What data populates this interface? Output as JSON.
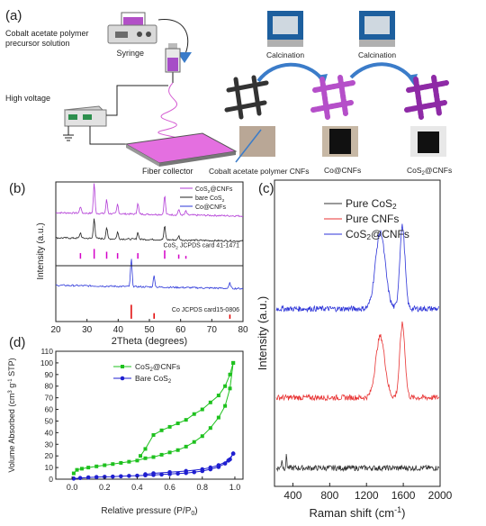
{
  "panel_a": {
    "label": "(a)",
    "precursor_line1": "Cobalt acetate polymer",
    "precursor_line2": "precursor solution",
    "syringe": "Syringe",
    "high_voltage": "High voltage",
    "fiber_collector": "Fiber collector",
    "calcination_1": "Calcination",
    "calcination_2": "Calcination",
    "stage_polymer": "Cobalt acetate polymer CNFs",
    "stage_co": "Co@CNFs",
    "stage_cos2_main": "CoS",
    "stage_cos2_sub": "2",
    "stage_cos2_rest": "@CNFs"
  },
  "colors": {
    "cos2_cnfs": "#b23bd6",
    "bare_cos2": "#222222",
    "co_cnfs": "#2b36d9",
    "ref_cos2": "#d400c8",
    "ref_co": "#e00000",
    "raman_pure_cos2": "#333333",
    "raman_pure_cnfs": "#e83232",
    "raman_cos2_cnfs": "#2c33d8",
    "bet_cos2_cnfs": "#1ec11e",
    "bet_bare": "#1f1fd0",
    "magenta_fiber": "#d45bd2",
    "device_blue": "#1d5f9e",
    "arrow_blue": "#3b7cc9"
  },
  "chart_data": [
    {
      "panel": "(b)",
      "type": "line",
      "xlabel": "2Theta (degrees)",
      "ylabel": "Intensity (a.u.)",
      "xlim": [
        20,
        80
      ],
      "xticks": [
        20,
        30,
        40,
        50,
        60,
        70,
        80
      ],
      "legend": "top-right",
      "series": [
        {
          "name": "CoS2@CNFs",
          "legend_main": "CoS",
          "legend_sub": "2",
          "legend_rest": "@CNFs",
          "baseline": 0.78,
          "peaks": [
            [
              27.9,
              0.05
            ],
            [
              32.3,
              0.22
            ],
            [
              36.3,
              0.1
            ],
            [
              39.8,
              0.07
            ],
            [
              46.3,
              0.08
            ],
            [
              54.9,
              0.14
            ],
            [
              59.4,
              0.04
            ],
            [
              61.7,
              0.03
            ]
          ]
        },
        {
          "name": "bare CoS2",
          "legend_main": "bare CoS",
          "legend_sub": "2",
          "legend_rest": "",
          "baseline": 0.6,
          "peaks": [
            [
              27.9,
              0.04
            ],
            [
              32.3,
              0.15
            ],
            [
              36.3,
              0.08
            ],
            [
              39.8,
              0.05
            ],
            [
              46.3,
              0.05
            ],
            [
              54.9,
              0.1
            ],
            [
              59.4,
              0.03
            ]
          ]
        },
        {
          "name": "Co@CNFs",
          "legend_main": "Co@CNFs",
          "legend_sub": "",
          "legend_rest": "",
          "baseline": 0.26,
          "peaks": [
            [
              44.2,
              0.2
            ],
            [
              51.5,
              0.08
            ],
            [
              75.8,
              0.04
            ]
          ]
        }
      ],
      "references": [
        {
          "label_main": "CoS",
          "label_sub": "2",
          "label_rest": " JCPDS card 41-1471",
          "baseline": 0.45,
          "positions": [
            [
              27.9,
              0.04
            ],
            [
              32.3,
              0.07
            ],
            [
              36.3,
              0.05
            ],
            [
              39.8,
              0.04
            ],
            [
              46.3,
              0.04
            ],
            [
              54.9,
              0.06
            ],
            [
              59.4,
              0.03
            ],
            [
              61.7,
              0.02
            ]
          ]
        },
        {
          "label_main": "Co JCPDS card15-0806",
          "label_sub": "",
          "label_rest": "",
          "baseline": 0.02,
          "positions": [
            [
              44.2,
              0.1
            ],
            [
              51.5,
              0.04
            ],
            [
              75.8,
              0.03
            ]
          ]
        }
      ]
    },
    {
      "panel": "(c)",
      "type": "line",
      "xlabel_main": "Raman shift (cm",
      "xlabel_sup": "-1",
      "xlabel_rest": ")",
      "ylabel": "Intensity (a.u.)",
      "xlim": [
        200,
        2000
      ],
      "xticks": [
        400,
        800,
        1200,
        1600,
        2000
      ],
      "legend": "top-right",
      "series": [
        {
          "name": "Pure CoS2",
          "legend_main": "Pure CoS",
          "legend_sub": "2",
          "legend_rest": "",
          "baseline": 0.06,
          "bands": [
            [
              280,
              0.03,
              8
            ],
            [
              330,
              0.04,
              8
            ]
          ]
        },
        {
          "name": "Pure CNFs",
          "legend_main": "Pure CNFs",
          "legend_sub": "",
          "legend_rest": "",
          "baseline": 0.29,
          "bands": [
            [
              1350,
              0.2,
              70
            ],
            [
              1590,
              0.24,
              40
            ]
          ]
        },
        {
          "name": "CoS2@CNFs",
          "legend_main": "CoS",
          "legend_sub": "2",
          "legend_rest": "@CNFs",
          "baseline": 0.58,
          "bands": [
            [
              1350,
              0.25,
              75
            ],
            [
              1590,
              0.27,
              40
            ]
          ]
        }
      ]
    },
    {
      "panel": "(d)",
      "type": "scatter",
      "xlabel_main": "Relative pressure (P/P",
      "xlabel_sub": "0",
      "xlabel_rest": ")",
      "ylabel_main": "Volume Absorbed (cm",
      "ylabel_sup1": "3",
      "ylabel_mid": " g",
      "ylabel_sup2": "-1",
      "ylabel_rest": " STP)",
      "xlim": [
        -0.1,
        1.05
      ],
      "ylim": [
        0,
        110
      ],
      "xticks": [
        0.0,
        0.2,
        0.4,
        0.6,
        0.8,
        1.0
      ],
      "xtick_labels": [
        "0.0",
        "0.2",
        "0.4",
        "0.6",
        "0.8",
        "1.0"
      ],
      "yticks": [
        0,
        10,
        20,
        30,
        40,
        50,
        60,
        70,
        80,
        90,
        100,
        110
      ],
      "legend": "top-left",
      "series": [
        {
          "name": "CoS2@CNFs",
          "legend_main": "CoS",
          "legend_sub": "2",
          "legend_rest": "@CNFs",
          "marker": "square",
          "adsorption": [
            [
              0.01,
              5
            ],
            [
              0.03,
              8
            ],
            [
              0.06,
              9
            ],
            [
              0.1,
              10
            ],
            [
              0.15,
              11
            ],
            [
              0.2,
              12
            ],
            [
              0.25,
              13
            ],
            [
              0.3,
              14
            ],
            [
              0.35,
              15
            ],
            [
              0.4,
              16
            ],
            [
              0.45,
              18
            ],
            [
              0.5,
              19
            ],
            [
              0.55,
              21
            ],
            [
              0.6,
              23
            ],
            [
              0.65,
              25
            ],
            [
              0.7,
              28
            ],
            [
              0.75,
              32
            ],
            [
              0.8,
              37
            ],
            [
              0.85,
              44
            ],
            [
              0.9,
              53
            ],
            [
              0.94,
              63
            ],
            [
              0.97,
              78
            ],
            [
              0.99,
              100
            ]
          ],
          "desorption": [
            [
              0.99,
              100
            ],
            [
              0.97,
              90
            ],
            [
              0.94,
              80
            ],
            [
              0.9,
              72
            ],
            [
              0.85,
              66
            ],
            [
              0.8,
              60
            ],
            [
              0.75,
              56
            ],
            [
              0.7,
              51
            ],
            [
              0.65,
              48
            ],
            [
              0.6,
              45
            ],
            [
              0.55,
              42
            ],
            [
              0.5,
              38
            ],
            [
              0.45,
              26
            ],
            [
              0.42,
              20
            ]
          ]
        },
        {
          "name": "Bare CoS2",
          "legend_main": "Bare CoS",
          "legend_sub": "2",
          "legend_rest": "",
          "marker": "circle",
          "adsorption": [
            [
              0.01,
              0.5
            ],
            [
              0.05,
              1
            ],
            [
              0.1,
              1.5
            ],
            [
              0.15,
              1.8
            ],
            [
              0.2,
              2
            ],
            [
              0.25,
              2.2
            ],
            [
              0.3,
              2.5
            ],
            [
              0.35,
              2.8
            ],
            [
              0.4,
              3
            ],
            [
              0.45,
              3.3
            ],
            [
              0.5,
              3.6
            ],
            [
              0.55,
              4
            ],
            [
              0.6,
              4.4
            ],
            [
              0.65,
              4.8
            ],
            [
              0.7,
              5.3
            ],
            [
              0.75,
              6
            ],
            [
              0.8,
              7
            ],
            [
              0.85,
              8.5
            ],
            [
              0.9,
              10.5
            ],
            [
              0.94,
              13.5
            ],
            [
              0.97,
              17
            ],
            [
              0.99,
              22
            ]
          ],
          "desorption": [
            [
              0.99,
              22
            ],
            [
              0.96,
              16
            ],
            [
              0.9,
              12
            ],
            [
              0.85,
              10
            ],
            [
              0.8,
              8.5
            ],
            [
              0.7,
              7
            ],
            [
              0.6,
              6
            ],
            [
              0.5,
              5
            ],
            [
              0.45,
              4.2
            ]
          ]
        }
      ]
    }
  ]
}
